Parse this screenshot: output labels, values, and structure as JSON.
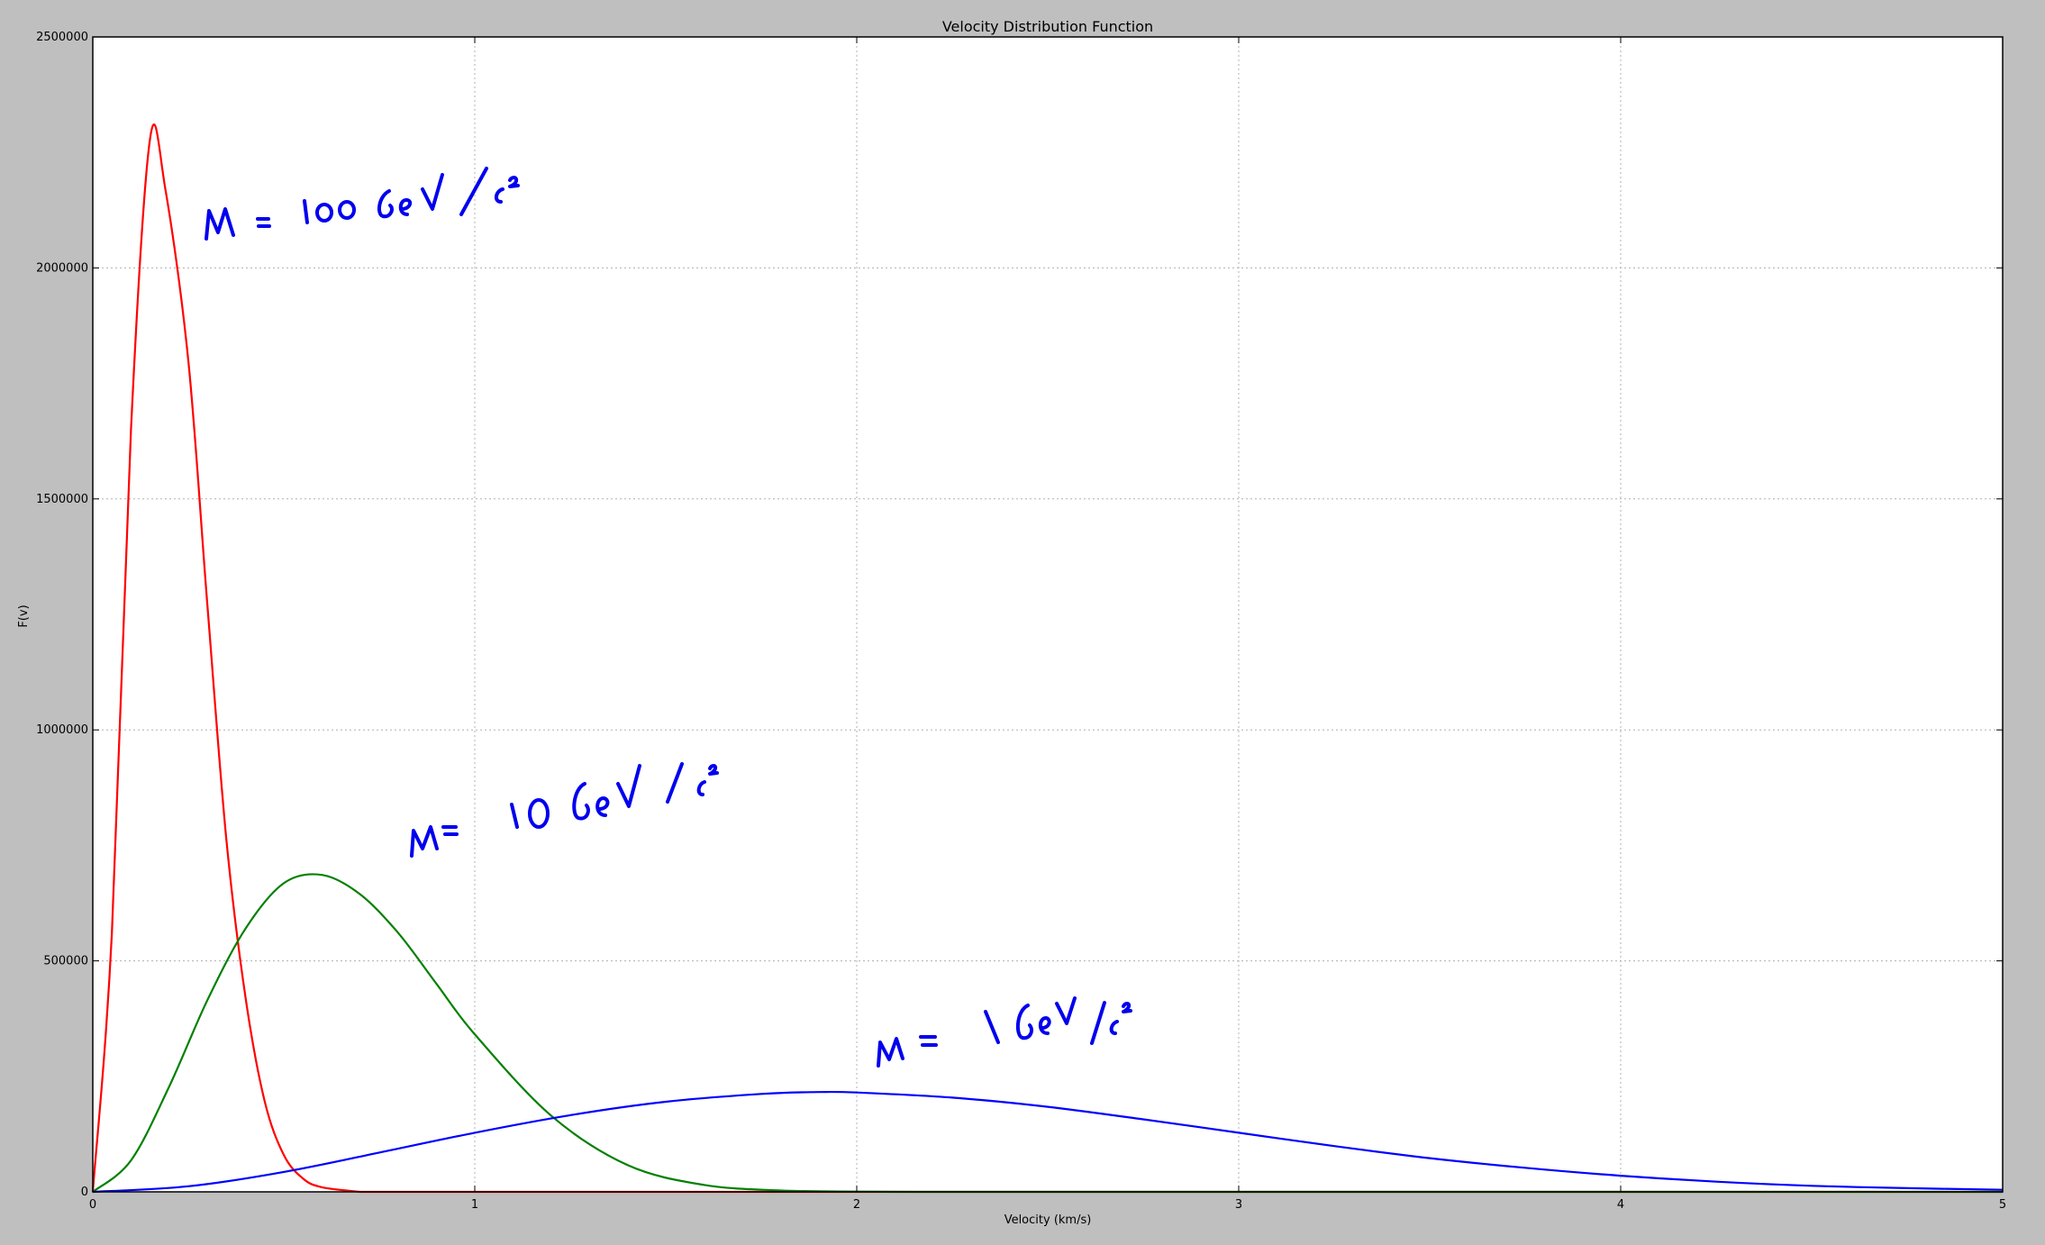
{
  "chart_data": {
    "type": "line",
    "title": "Velocity Distribution Function",
    "xlabel": "Velocity (km/s)",
    "ylabel": "F(v)",
    "xlim": [
      0,
      5
    ],
    "ylim": [
      0,
      2500000
    ],
    "xticks": [
      0,
      1,
      2,
      3,
      4,
      5
    ],
    "xtick_labels": [
      "0",
      "1",
      "2",
      "3",
      "4",
      "5"
    ],
    "yticks": [
      0,
      500000,
      1000000,
      1500000,
      2000000,
      2500000
    ],
    "ytick_labels": [
      "0",
      "500000",
      "1000000",
      "1500000",
      "2000000",
      "2500000"
    ],
    "grid": true,
    "colors": {
      "figure_background": "#bfbfbf",
      "axes_background": "#ffffff",
      "grid": "#b0b0b0",
      "annotation": "#0000ee"
    },
    "series": [
      {
        "color": "#ff0000",
        "x": [
          0.0,
          0.05,
          0.1,
          0.15,
          0.19,
          0.25,
          0.3,
          0.35,
          0.4,
          0.45,
          0.5,
          0.55,
          0.6,
          0.7
        ],
        "y": [
          0,
          560000,
          1650000,
          2280000,
          2170000,
          1800000,
          1270000,
          760000,
          420000,
          196000,
          80000,
          29000,
          10000,
          0
        ]
      },
      {
        "color": "#008000",
        "x": [
          0.0,
          0.1,
          0.2,
          0.3,
          0.4,
          0.5,
          0.6,
          0.7,
          0.8,
          0.9,
          1.0,
          1.2,
          1.4,
          1.6,
          1.8,
          2.0,
          2.2
        ],
        "y": [
          0,
          68000,
          228000,
          415000,
          570000,
          668000,
          686000,
          644000,
          560000,
          450000,
          341000,
          165000,
          58000,
          15000,
          3000,
          500,
          0
        ]
      },
      {
        "color": "#0000ff",
        "x": [
          0.0,
          0.25,
          0.5,
          0.75,
          1.0,
          1.25,
          1.5,
          1.75,
          1.9,
          2.0,
          2.25,
          2.5,
          2.75,
          3.0,
          3.25,
          3.5,
          3.75,
          4.0,
          4.25,
          4.5,
          4.75,
          5.0
        ],
        "y": [
          0,
          12000,
          43000,
          85000,
          128000,
          166000,
          195000,
          212000,
          216000,
          215000,
          204000,
          184000,
          157000,
          128000,
          99000,
          73000,
          52000,
          35000,
          22000,
          13000,
          8000,
          4500
        ]
      }
    ],
    "annotations": [
      {
        "text": "M = 100 GeV/c²",
        "x": 0.29,
        "y": 2170000
      },
      {
        "text": "M= 10 GeV/c²",
        "x": 0.83,
        "y": 760000
      },
      {
        "text": "M = 1 GeV/c²",
        "x": 2.05,
        "y": 280000
      }
    ]
  }
}
